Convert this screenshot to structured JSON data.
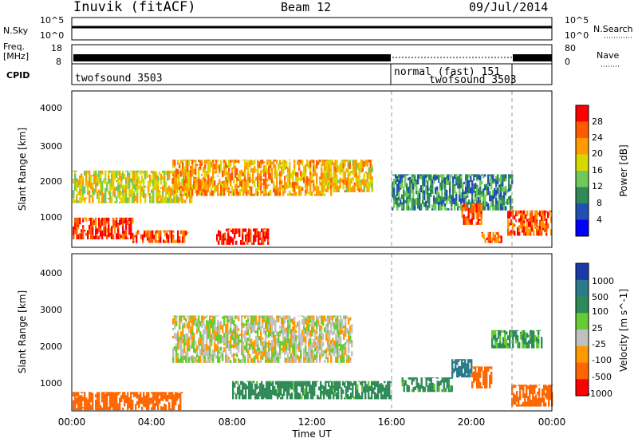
{
  "header": {
    "radar": "Inuvik (fitACF)",
    "beam": "Beam 12",
    "date": "09/Jul/2014"
  },
  "top_panels": {
    "nsky_label": "N.Sky",
    "nsky_ticks_left": [
      "10^5",
      "10^0"
    ],
    "nsky_ticks_right": [
      "10^5",
      "10^0"
    ],
    "nsearch_label": "N.Search",
    "freq_label_1": "Freq.",
    "freq_label_2": "[MHz]",
    "freq_ticks": [
      "18",
      "8"
    ],
    "nave_ticks": [
      "80",
      "0"
    ],
    "nave_label": "Nave",
    "cpid_label": "CPID",
    "cpid_entries": [
      "twofsound 3503",
      "normal (fast) 151",
      "twofsound 3503"
    ]
  },
  "axes": {
    "y_label": "Slant Range [km]",
    "y_ticks": [
      "4000",
      "3000",
      "2000",
      "1000"
    ],
    "x_label": "Time UT",
    "x_ticks": [
      "00:00",
      "04:00",
      "08:00",
      "12:00",
      "16:00",
      "20:00",
      "00:00"
    ]
  },
  "colorbars": {
    "power": {
      "label": "Power [dB]",
      "ticks": [
        "28",
        "24",
        "20",
        "16",
        "12",
        "8",
        "4"
      ],
      "colors": [
        "#ff0000",
        "#ff5a00",
        "#ff9a00",
        "#d8d800",
        "#6ec85a",
        "#2e8b57",
        "#2050b0",
        "#0000ff"
      ]
    },
    "velocity": {
      "label": "Velocity [m s^-1]",
      "ticks": [
        "1000",
        "500",
        "100",
        "25",
        "-25",
        "-100",
        "-500",
        "-1000"
      ],
      "colors": [
        "#1a3aa8",
        "#2a7a8a",
        "#2e8b57",
        "#66cc33",
        "#c0c0c0",
        "#ff9900",
        "#ff6600",
        "#ff0000"
      ]
    }
  },
  "chart_data": [
    {
      "type": "heatmap",
      "title": "Inuvik (fitACF) Beam 12 09/Jul/2014",
      "xlabel": "Time UT",
      "ylabel": "Slant Range [km]",
      "xlim": [
        "00:00",
        "24:00"
      ],
      "ylim": [
        180,
        4500
      ],
      "colorbar": "Power [dB]",
      "clim": [
        0,
        32
      ],
      "regions": [
        {
          "t0": 0.0,
          "t1": 3.0,
          "r0": 400,
          "r1": 1000,
          "value": 28
        },
        {
          "t0": 3.0,
          "t1": 5.8,
          "r0": 300,
          "r1": 650,
          "value": 26
        },
        {
          "t0": 7.2,
          "t1": 9.8,
          "r0": 250,
          "r1": 700,
          "value": 30
        },
        {
          "t0": 0.0,
          "t1": 6.0,
          "r0": 1400,
          "r1": 2300,
          "value": 18
        },
        {
          "t0": 5.0,
          "t1": 13.0,
          "r0": 1600,
          "r1": 2600,
          "value": 22
        },
        {
          "t0": 12.5,
          "t1": 15.0,
          "r0": 1700,
          "r1": 2600,
          "value": 20
        },
        {
          "t0": 16.0,
          "t1": 22.0,
          "r0": 1200,
          "r1": 2200,
          "value": 10
        },
        {
          "t0": 19.5,
          "t1": 20.5,
          "r0": 800,
          "r1": 1400,
          "value": 26
        },
        {
          "t0": 21.8,
          "t1": 24.0,
          "r0": 500,
          "r1": 1200,
          "value": 26
        },
        {
          "t0": 20.5,
          "t1": 21.5,
          "r0": 300,
          "r1": 600,
          "value": 26
        }
      ]
    },
    {
      "type": "heatmap",
      "title": "Inuvik (fitACF) Beam 12 09/Jul/2014",
      "xlabel": "Time UT",
      "ylabel": "Slant Range [km]",
      "xlim": [
        "00:00",
        "24:00"
      ],
      "ylim": [
        180,
        4500
      ],
      "colorbar": "Velocity [m s^-1]",
      "clim": [
        -1000,
        1000
      ],
      "regions": [
        {
          "t0": 0.0,
          "t1": 5.5,
          "r0": 200,
          "r1": 700,
          "value": -300
        },
        {
          "t0": 5.0,
          "t1": 14.0,
          "r0": 1500,
          "r1": 2800,
          "value": 0
        },
        {
          "t0": 8.0,
          "t1": 16.0,
          "r0": 500,
          "r1": 1000,
          "value": 150
        },
        {
          "t0": 16.5,
          "t1": 19.0,
          "r0": 700,
          "r1": 1100,
          "value": 150
        },
        {
          "t0": 19.0,
          "t1": 20.0,
          "r0": 1100,
          "r1": 1600,
          "value": 900
        },
        {
          "t0": 20.0,
          "t1": 21.0,
          "r0": 800,
          "r1": 1400,
          "value": -400
        },
        {
          "t0": 22.0,
          "t1": 24.0,
          "r0": 300,
          "r1": 900,
          "value": -200
        },
        {
          "t0": 21.0,
          "t1": 23.5,
          "r0": 1900,
          "r1": 2400,
          "value": 120
        }
      ]
    }
  ]
}
